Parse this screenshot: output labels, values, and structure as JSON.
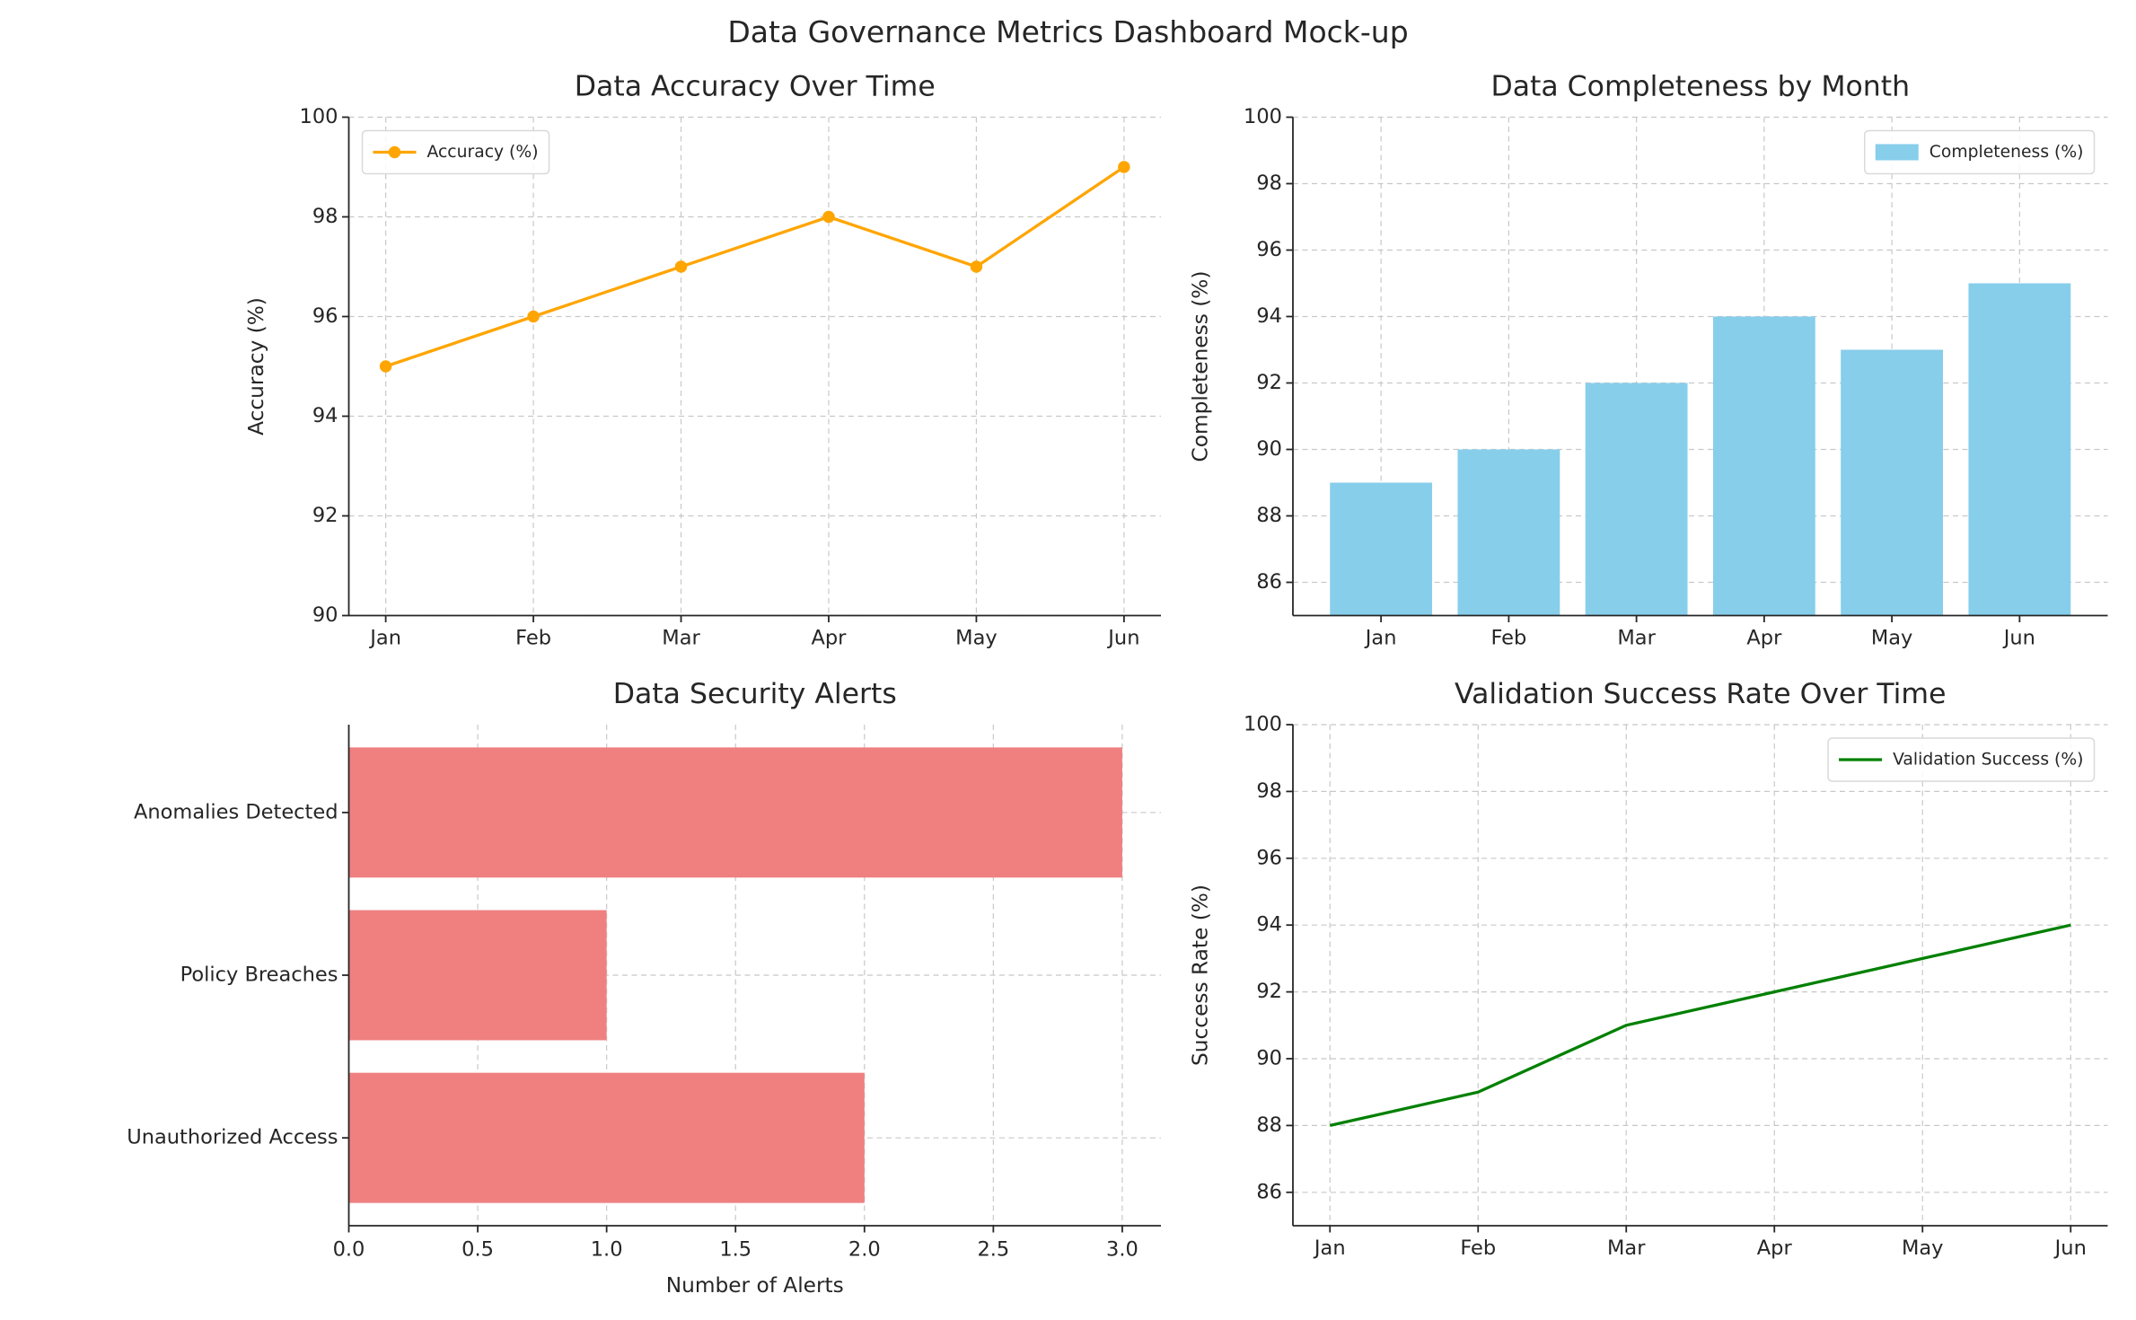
{
  "title": "Data Governance Metrics Dashboard Mock-up",
  "chart_data": [
    {
      "type": "line",
      "title": "Data Accuracy Over Time",
      "ylabel": "Accuracy (%)",
      "categories": [
        "Jan",
        "Feb",
        "Mar",
        "Apr",
        "May",
        "Jun"
      ],
      "series": [
        {
          "name": "Accuracy (%)",
          "color": "#ffa500",
          "values": [
            95,
            96,
            97,
            98,
            97,
            99
          ],
          "markers": true
        }
      ],
      "ylim": [
        90,
        100
      ],
      "yticks": [
        90,
        92,
        94,
        96,
        98,
        100
      ],
      "grid": true,
      "legend": "upper left"
    },
    {
      "type": "bar",
      "title": "Data Completeness by Month",
      "ylabel": "Completeness (%)",
      "categories": [
        "Jan",
        "Feb",
        "Mar",
        "Apr",
        "May",
        "Jun"
      ],
      "series": [
        {
          "name": "Completeness (%)",
          "color": "#87ceeb",
          "values": [
            89,
            90,
            92,
            94,
            93,
            95
          ]
        }
      ],
      "ylim": [
        85,
        100
      ],
      "yticks": [
        86,
        88,
        90,
        92,
        94,
        96,
        98,
        100
      ],
      "grid": true,
      "legend": "upper right"
    },
    {
      "type": "barh",
      "title": "Data Security Alerts",
      "xlabel": "Number of Alerts",
      "categories": [
        "Unauthorized Access",
        "Policy Breaches",
        "Anomalies Detected"
      ],
      "values": [
        2,
        1,
        3
      ],
      "color": "#f08080",
      "xlim": [
        0,
        3.15
      ],
      "xticks": [
        {
          "value": 0,
          "label": "0.0"
        },
        {
          "value": 0.5,
          "label": "0.5"
        },
        {
          "value": 1,
          "label": "1.0"
        },
        {
          "value": 1.5,
          "label": "1.5"
        },
        {
          "value": 2,
          "label": "2.0"
        },
        {
          "value": 2.5,
          "label": "2.5"
        },
        {
          "value": 3,
          "label": "3.0"
        }
      ],
      "grid": true
    },
    {
      "type": "line",
      "title": "Validation Success Rate Over Time",
      "ylabel": "Success Rate (%)",
      "categories": [
        "Jan",
        "Feb",
        "Mar",
        "Apr",
        "May",
        "Jun"
      ],
      "series": [
        {
          "name": "Validation Success (%)",
          "color": "#008000",
          "values": [
            88,
            89,
            91,
            92,
            93,
            94
          ],
          "markers": false
        }
      ],
      "ylim": [
        85,
        100
      ],
      "yticks": [
        86,
        88,
        90,
        92,
        94,
        96,
        98,
        100
      ],
      "grid": true,
      "legend": "upper right"
    }
  ]
}
